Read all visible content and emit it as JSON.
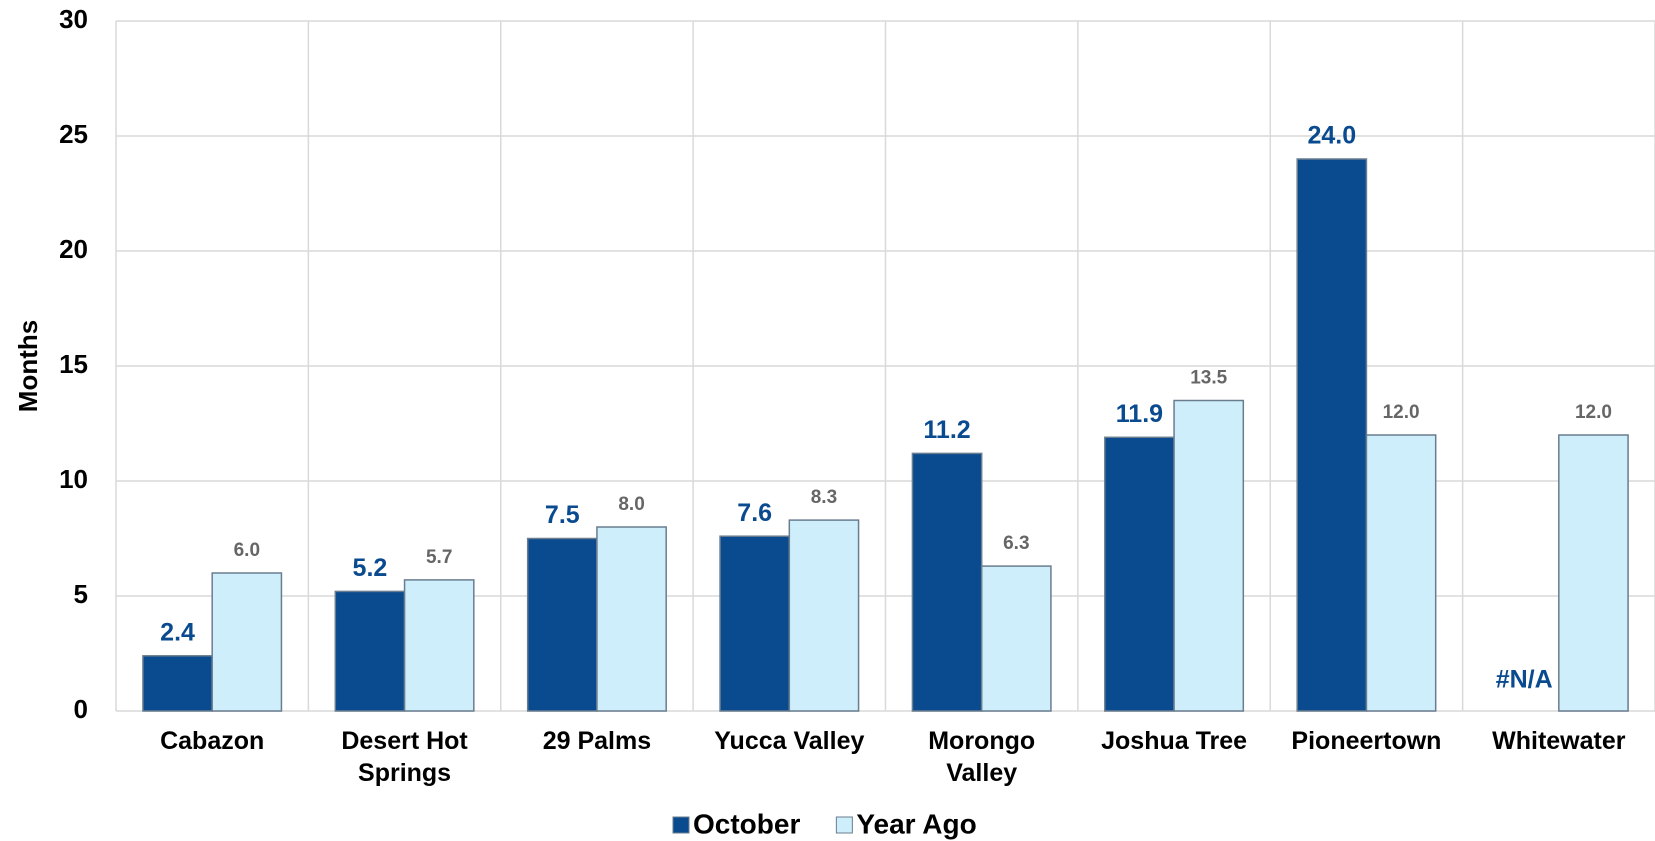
{
  "chart_data": {
    "type": "bar",
    "y_label": "Months",
    "categories": [
      "Cabazon",
      "Desert Hot Springs",
      "29 Palms",
      "Yucca Valley",
      "Morongo Valley",
      "Joshua Tree",
      "Pioneertown",
      "Whitewater"
    ],
    "series": [
      {
        "name": "October",
        "color": "#0a4a8f",
        "values": [
          2.4,
          5.2,
          7.5,
          7.6,
          11.2,
          11.9,
          24.0,
          null
        ],
        "value_labels": [
          "2.4",
          "5.2",
          "7.5",
          "7.6",
          "11.2",
          "11.9",
          "24.0",
          "#N/A"
        ]
      },
      {
        "name": "Year Ago",
        "color": "#cdeefa",
        "values": [
          6.0,
          5.7,
          8.0,
          8.3,
          6.3,
          13.5,
          12.0,
          12.0
        ],
        "value_labels": [
          "6.0",
          "5.7",
          "8.0",
          "8.3",
          "6.3",
          "13.5",
          "12.0",
          "12.0"
        ]
      }
    ],
    "ylim": [
      0,
      30
    ],
    "yticks": [
      0,
      5,
      10,
      15,
      20,
      25,
      30
    ],
    "grid": true,
    "legend": "bottom"
  }
}
